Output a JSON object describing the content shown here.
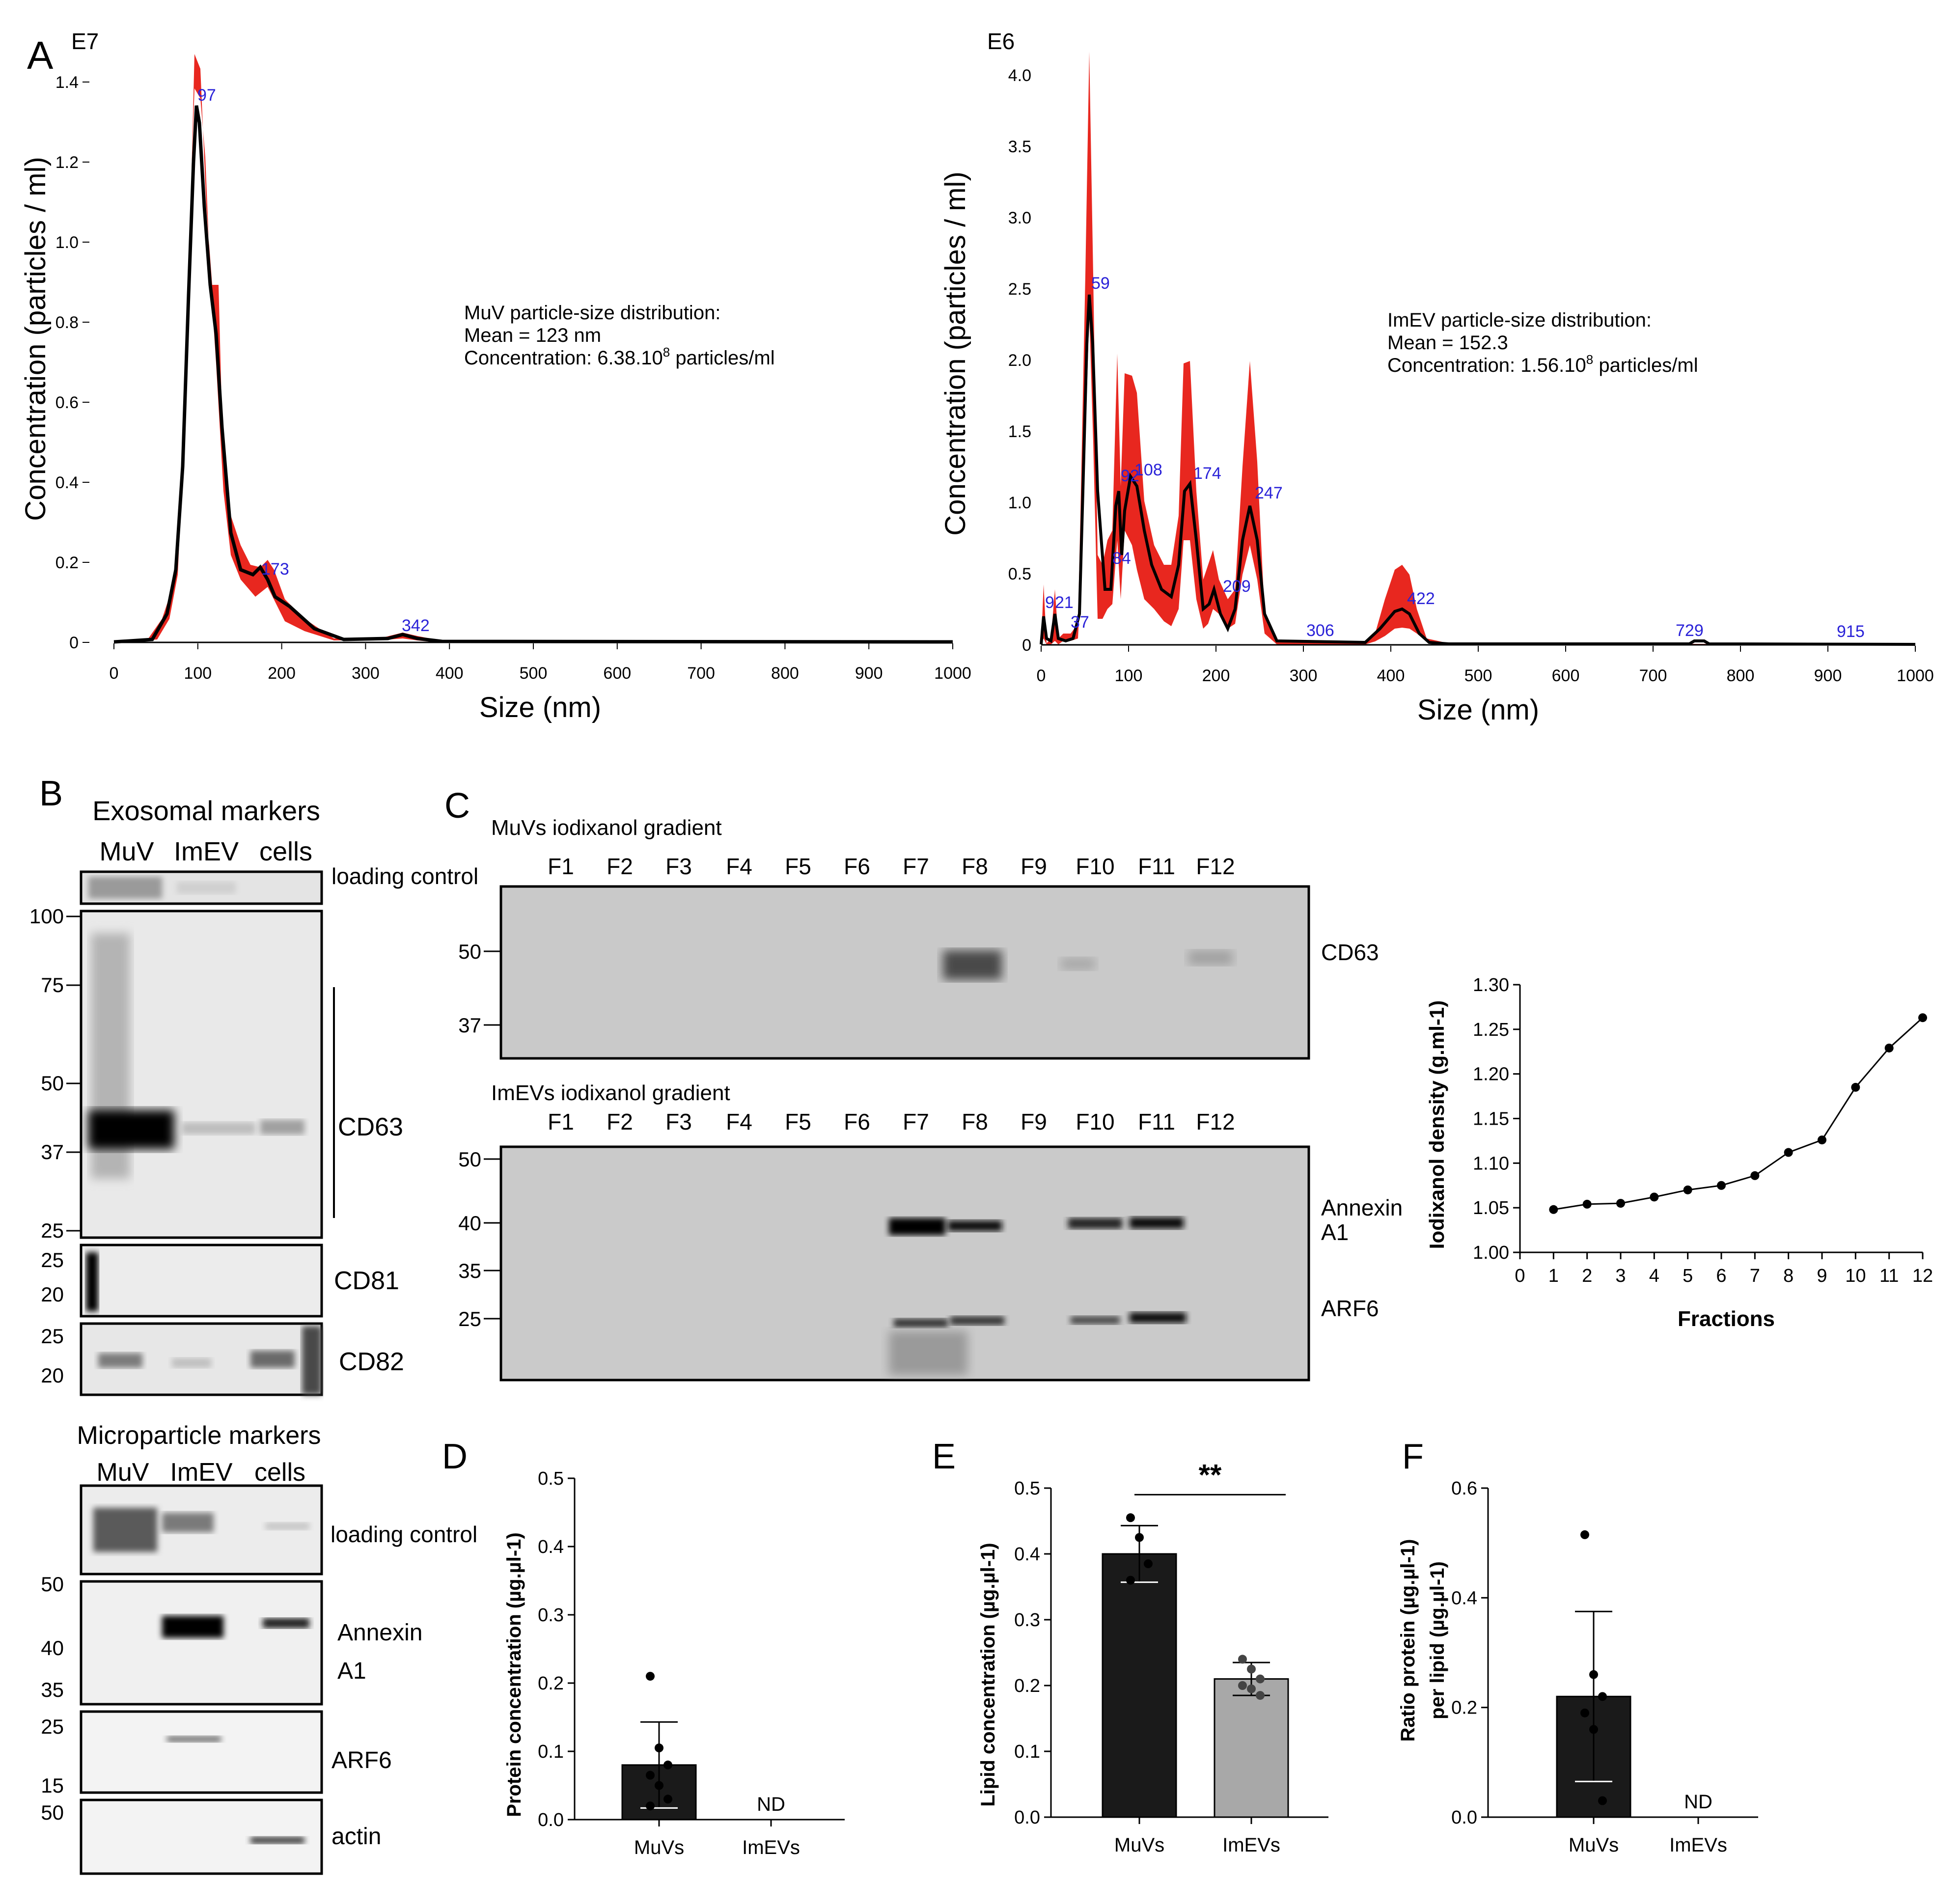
{
  "panels": {
    "A": "A",
    "B": "B",
    "C": "C",
    "D": "D",
    "E": "E",
    "F": "F"
  },
  "colors": {
    "band": "#e8271f",
    "line": "#000000",
    "peak_label": "#2a22d8",
    "bar_dark": "#1a1a1a",
    "bar_light": "#a8a8a8",
    "blot_bg": "#d9d9d9"
  },
  "panel_a": {
    "left": {
      "scale": "E7",
      "ylabel": "Concentration (particles / ml)",
      "xlabel": "Size (nm)",
      "yticks": [
        "0",
        "0.2",
        "0.4",
        "0.6",
        "0.8",
        "1.0",
        "1.2",
        "1.4"
      ],
      "xticks": [
        "0",
        "100",
        "200",
        "300",
        "400",
        "500",
        "600",
        "700",
        "800",
        "900",
        "1000"
      ],
      "peaks": [
        "97",
        "173",
        "342"
      ],
      "stats": [
        "MuV particle-size distribution:",
        "Mean = 123 nm",
        "Concentration: 6.38.10",
        "8",
        " particles/ml"
      ]
    },
    "right": {
      "scale": "E6",
      "ylabel": "Concentration (particles / ml)",
      "xlabel": "Size (nm)",
      "yticks": [
        "0",
        "0.5",
        "1.0",
        "1.5",
        "2.0",
        "2.5",
        "3.0",
        "3.5",
        "4.0"
      ],
      "xticks": [
        "0",
        "100",
        "200",
        "300",
        "400",
        "500",
        "600",
        "700",
        "800",
        "900",
        "1000"
      ],
      "peaks": [
        "9",
        "21",
        "37",
        "59",
        "84",
        "92",
        "108",
        "174",
        "209",
        "247",
        "306",
        "422",
        "729",
        "915"
      ],
      "stats": [
        "ImEV particle-size distribution:",
        "Mean = 152.3",
        "Concentration: 1.56.10",
        "8",
        " particles/ml"
      ]
    }
  },
  "panel_b": {
    "title_top": "Exosomal markers",
    "lanes_top": [
      "MuV",
      "ImEV",
      "cells"
    ],
    "loading_control": "loading control",
    "mw_main": [
      "100",
      "75",
      "50",
      "37",
      "25"
    ],
    "mw_cd81": [
      "25",
      "20"
    ],
    "mw_cd82": [
      "25",
      "20"
    ],
    "labels_top": [
      "CD63",
      "CD81",
      "CD82"
    ],
    "title_bottom": "Microparticle markers",
    "lanes_bottom": [
      "MuV",
      "ImEV",
      "cells"
    ],
    "mw_annexin": [
      "50",
      "40",
      "35"
    ],
    "mw_arf6": [
      "25",
      "15"
    ],
    "mw_actin": [
      "50"
    ],
    "labels_bottom": [
      "Annexin",
      "A1",
      "ARF6",
      "actin"
    ]
  },
  "panel_c": {
    "title_muv": "MuVs iodixanol gradient",
    "title_imev": "ImEVs iodixanol gradient",
    "fractions": [
      "F1",
      "F2",
      "F3",
      "F4",
      "F5",
      "F6",
      "F7",
      "F8",
      "F9",
      "F10",
      "F11",
      "F12"
    ],
    "mw_muv": [
      "50",
      "37"
    ],
    "mw_imev": [
      "50",
      "40",
      "35",
      "25"
    ],
    "label_muv": "CD63",
    "labels_imev": [
      "Annexin",
      "A1",
      "ARF6"
    ]
  },
  "chart_data": [
    {
      "type": "line",
      "panel": "C",
      "title": "",
      "xlabel": "Fractions",
      "ylabel": "Iodixanol density (g.ml-1)",
      "x": [
        1,
        2,
        3,
        4,
        5,
        6,
        7,
        8,
        9,
        10,
        11,
        12
      ],
      "values": [
        1.048,
        1.054,
        1.055,
        1.062,
        1.07,
        1.075,
        1.086,
        1.112,
        1.126,
        1.185,
        1.229,
        1.263
      ],
      "xlim": [
        0,
        12
      ],
      "ylim": [
        1.0,
        1.3
      ],
      "xticks": [
        "0",
        "1",
        "2",
        "3",
        "4",
        "5",
        "6",
        "7",
        "8",
        "9",
        "10",
        "11",
        "12"
      ],
      "yticks": [
        "1.00",
        "1.05",
        "1.10",
        "1.15",
        "1.20",
        "1.25",
        "1.30"
      ]
    },
    {
      "type": "bar",
      "panel": "D",
      "ylabel": "Protein concentration (µg.µl-1)",
      "categories": [
        "MuVs",
        "ImEVs"
      ],
      "values": [
        0.08,
        0
      ],
      "errors": [
        0.063,
        0
      ],
      "points": [
        [
          0.21,
          0.105,
          0.08,
          0.065,
          0.05,
          0.03,
          0.02
        ],
        []
      ],
      "annotations": [
        "",
        "ND"
      ],
      "ylim": [
        0,
        0.5
      ],
      "yticks": [
        "0.0",
        "0.1",
        "0.2",
        "0.3",
        "0.4",
        "0.5"
      ]
    },
    {
      "type": "bar",
      "panel": "E",
      "ylabel": "Lipid concentration (µg.µl-1)",
      "categories": [
        "MuVs",
        "ImEVs"
      ],
      "values": [
        0.4,
        0.21
      ],
      "errors": [
        0.043,
        0.025
      ],
      "points": [
        [
          0.455,
          0.425,
          0.385,
          0.36
        ],
        [
          0.24,
          0.225,
          0.21,
          0.2,
          0.195,
          0.185
        ]
      ],
      "significance": "**",
      "ylim": [
        0,
        0.5
      ],
      "yticks": [
        "0.0",
        "0.1",
        "0.2",
        "0.3",
        "0.4",
        "0.5"
      ]
    },
    {
      "type": "bar",
      "panel": "F",
      "ylabel_lines": [
        "Ratio protein (µg.µl-1)",
        "per lipid (µg.µl-1)"
      ],
      "categories": [
        "MuVs",
        "ImEVs"
      ],
      "values": [
        0.22,
        0
      ],
      "errors": [
        0.155,
        0
      ],
      "points": [
        [
          0.515,
          0.26,
          0.22,
          0.19,
          0.16,
          0.03
        ],
        []
      ],
      "annotations": [
        "",
        "ND"
      ],
      "ylim": [
        0,
        0.6
      ],
      "yticks": [
        "0.0",
        "0.2",
        "0.4",
        "0.6"
      ]
    }
  ]
}
